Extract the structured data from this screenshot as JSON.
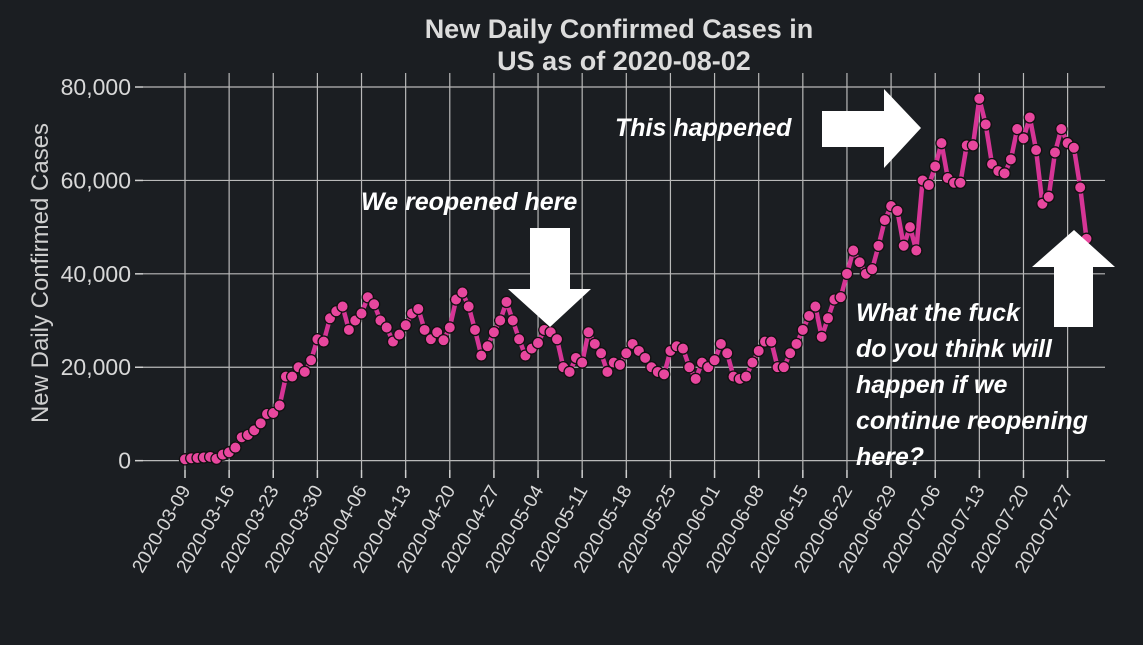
{
  "chart_data": {
    "type": "line",
    "title_lines": [
      "New Daily Confirmed Cases in",
      "US as of 2020-08-02"
    ],
    "ylabel": "New Daily Confirmed Cases",
    "xlabel": "",
    "ylim": [
      -2000,
      83000
    ],
    "yticks": [
      0,
      20000,
      40000,
      60000,
      80000
    ],
    "ytick_labels": [
      "0",
      "20,000",
      "40,000",
      "60,000",
      "80,000"
    ],
    "x_start": "2020-03-09",
    "x_end": "2020-08-02",
    "xticks": [
      "2020-03-09",
      "2020-03-16",
      "2020-03-23",
      "2020-03-30",
      "2020-04-06",
      "2020-04-13",
      "2020-04-20",
      "2020-04-27",
      "2020-05-04",
      "2020-05-11",
      "2020-05-18",
      "2020-05-25",
      "2020-06-01",
      "2020-06-08",
      "2020-06-15",
      "2020-06-22",
      "2020-06-29",
      "2020-07-06",
      "2020-07-13",
      "2020-07-20",
      "2020-07-27"
    ],
    "grid": true,
    "series_color": "#d63596",
    "marker_color": "#e8479e",
    "series": [
      {
        "values": [
          300,
          500,
          600,
          700,
          800,
          400,
          1300,
          1800,
          2800,
          5000,
          5500,
          6500,
          8000,
          10000,
          10200,
          11800,
          18000,
          18000,
          20000,
          19000,
          21500,
          26000,
          25500,
          30500,
          32000,
          33000,
          28000,
          30000,
          31500,
          35000,
          33500,
          30000,
          28500,
          25500,
          27000,
          29000,
          31500,
          32500,
          28000,
          26000,
          27500,
          25800,
          28500,
          34500,
          36000,
          33000,
          28000,
          22500,
          24500,
          27500,
          30000,
          34000,
          30000,
          26000,
          22500,
          24000,
          25200,
          28000,
          27500,
          26000,
          20000,
          19000,
          22000,
          21000,
          27500,
          25000,
          23000,
          19000,
          21000,
          20500,
          23000,
          25000,
          23500,
          22000,
          20000,
          19000,
          18500,
          23500,
          24500,
          24000,
          20000,
          17500,
          21000,
          20000,
          21500,
          25000,
          23000,
          18000,
          17500,
          18000,
          21000,
          23500,
          25500,
          25500,
          20000,
          20000,
          23000,
          25000,
          28000,
          31000,
          33000,
          26500,
          30500,
          34500,
          35000,
          40000,
          45000,
          42500,
          40000,
          41000,
          46000,
          51500,
          54500,
          53500,
          46000,
          50000,
          45000,
          60000,
          59000,
          63000,
          68000,
          60500,
          59500,
          59500,
          67500,
          67500,
          77500,
          72000,
          63500,
          62000,
          61500,
          64500,
          71000,
          69000,
          73500,
          66500,
          55000,
          56500,
          66000,
          71000,
          68000,
          67000,
          58500,
          47500
        ]
      }
    ],
    "annotations": [
      {
        "text": "This happened"
      },
      {
        "text": "We reopened here"
      },
      {
        "lines": [
          "What the fuck",
          "do you think will",
          "happen if we",
          "continue reopening",
          "here?"
        ]
      }
    ]
  }
}
